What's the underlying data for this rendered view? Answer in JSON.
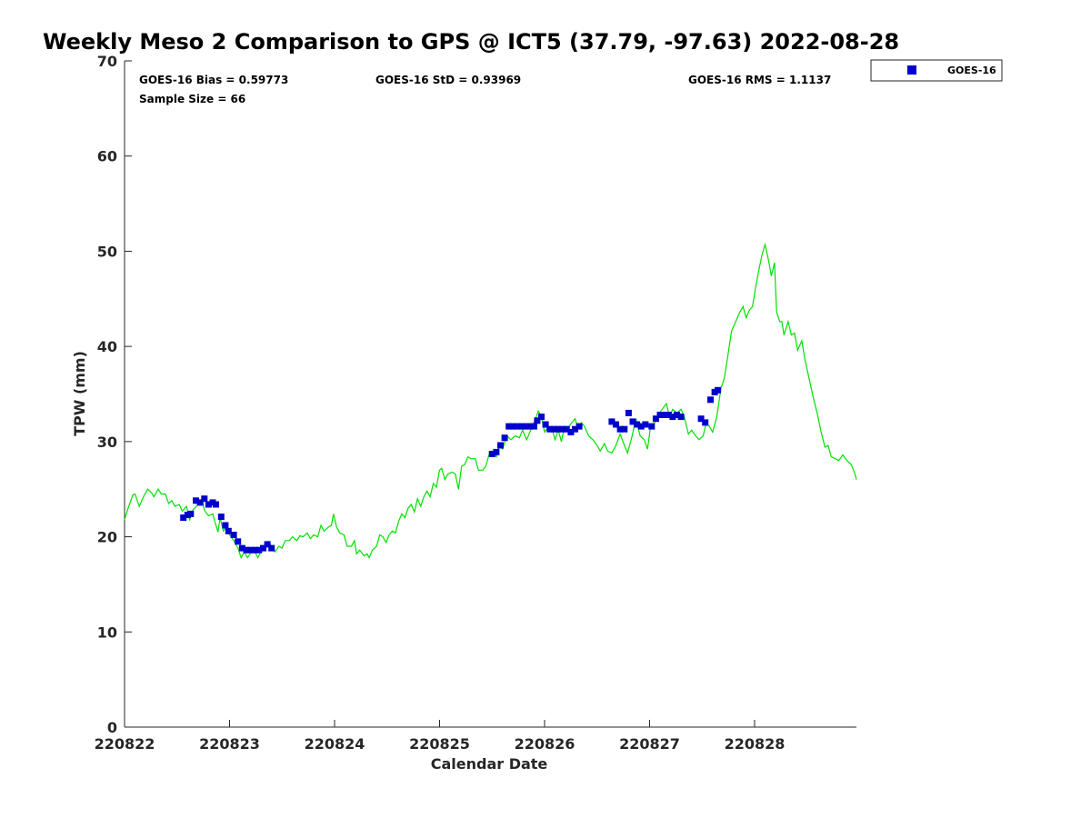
{
  "chart_data": {
    "type": "scatter",
    "title": "Weekly Meso 2 Comparison to GPS @ ICT5 (37.79, -97.63) 2022-08-28",
    "xlabel": "Calendar Date",
    "ylabel": "TPW (mm)",
    "xlim": [
      0,
      6.97
    ],
    "ylim": [
      0,
      70
    ],
    "yticks": [
      0,
      10,
      20,
      30,
      40,
      50,
      60,
      70
    ],
    "xticks": [
      0,
      1,
      2,
      3,
      4,
      5,
      6
    ],
    "xtick_labels": [
      "220822",
      "220823",
      "220824",
      "220825",
      "220826",
      "220827",
      "220828"
    ],
    "legend": {
      "position": "top-right-outside",
      "entries": [
        "GOES-16"
      ]
    },
    "stats": {
      "bias": "GOES-16 Bias = 0.59773",
      "std": "GOES-16 StD = 0.93969",
      "rms": "GOES-16 RMS = 1.1137",
      "sample": "Sample Size = 66"
    },
    "colors": {
      "goes": "#0000cc",
      "gps": "#00e000",
      "axis": "#262626"
    },
    "series": [
      {
        "kind": "markers",
        "name": "GOES-16",
        "points": [
          [
            0.56,
            22.0
          ],
          [
            0.6,
            22.3
          ],
          [
            0.63,
            22.4
          ],
          [
            0.68,
            23.8
          ],
          [
            0.72,
            23.6
          ],
          [
            0.76,
            24.0
          ],
          [
            0.8,
            23.4
          ],
          [
            0.84,
            23.6
          ],
          [
            0.87,
            23.4
          ],
          [
            0.92,
            22.1
          ],
          [
            0.96,
            21.2
          ],
          [
            0.99,
            20.6
          ],
          [
            1.04,
            20.2
          ],
          [
            1.08,
            19.5
          ],
          [
            1.12,
            18.8
          ],
          [
            1.16,
            18.6
          ],
          [
            1.2,
            18.6
          ],
          [
            1.24,
            18.6
          ],
          [
            1.28,
            18.6
          ],
          [
            1.32,
            18.8
          ],
          [
            1.36,
            19.2
          ],
          [
            1.4,
            18.8
          ],
          [
            3.5,
            28.7
          ],
          [
            3.54,
            28.9
          ],
          [
            3.58,
            29.6
          ],
          [
            3.62,
            30.4
          ],
          [
            3.66,
            31.6
          ],
          [
            3.7,
            31.6
          ],
          [
            3.74,
            31.6
          ],
          [
            3.78,
            31.6
          ],
          [
            3.82,
            31.6
          ],
          [
            3.86,
            31.6
          ],
          [
            3.9,
            31.6
          ],
          [
            3.93,
            32.2
          ],
          [
            3.97,
            32.6
          ],
          [
            4.01,
            31.8
          ],
          [
            4.05,
            31.3
          ],
          [
            4.09,
            31.3
          ],
          [
            4.13,
            31.3
          ],
          [
            4.17,
            31.3
          ],
          [
            4.21,
            31.3
          ],
          [
            4.25,
            31.0
          ],
          [
            4.29,
            31.3
          ],
          [
            4.33,
            31.6
          ],
          [
            4.64,
            32.1
          ],
          [
            4.68,
            31.8
          ],
          [
            4.72,
            31.3
          ],
          [
            4.76,
            31.3
          ],
          [
            4.8,
            33.0
          ],
          [
            4.84,
            32.1
          ],
          [
            4.88,
            31.8
          ],
          [
            4.92,
            31.6
          ],
          [
            4.96,
            31.8
          ],
          [
            5.02,
            31.6
          ],
          [
            5.06,
            32.4
          ],
          [
            5.1,
            32.8
          ],
          [
            5.14,
            32.8
          ],
          [
            5.18,
            32.8
          ],
          [
            5.22,
            32.6
          ],
          [
            5.26,
            32.8
          ],
          [
            5.3,
            32.6
          ],
          [
            5.49,
            32.4
          ],
          [
            5.53,
            32.0
          ],
          [
            5.58,
            34.4
          ],
          [
            5.62,
            35.2
          ],
          [
            5.65,
            35.4
          ]
        ]
      },
      {
        "kind": "line",
        "name": "GPS",
        "points": [
          [
            0.0,
            21.8
          ],
          [
            0.04,
            23.2
          ],
          [
            0.08,
            24.4
          ],
          [
            0.1,
            24.5
          ],
          [
            0.14,
            23.2
          ],
          [
            0.18,
            24.2
          ],
          [
            0.22,
            25.0
          ],
          [
            0.26,
            24.6
          ],
          [
            0.28,
            24.2
          ],
          [
            0.32,
            25.0
          ],
          [
            0.35,
            24.5
          ],
          [
            0.39,
            24.5
          ],
          [
            0.42,
            23.5
          ],
          [
            0.45,
            23.8
          ],
          [
            0.48,
            23.2
          ],
          [
            0.52,
            23.4
          ],
          [
            0.55,
            22.7
          ],
          [
            0.59,
            23.2
          ],
          [
            0.62,
            21.8
          ],
          [
            0.65,
            22.8
          ],
          [
            0.7,
            23.4
          ],
          [
            0.74,
            23.8
          ],
          [
            0.76,
            22.8
          ],
          [
            0.8,
            22.2
          ],
          [
            0.84,
            22.4
          ],
          [
            0.86,
            21.6
          ],
          [
            0.89,
            20.5
          ],
          [
            0.91,
            22.0
          ],
          [
            0.94,
            20.6
          ],
          [
            0.97,
            21.0
          ],
          [
            1.0,
            20.2
          ],
          [
            1.04,
            19.6
          ],
          [
            1.08,
            18.8
          ],
          [
            1.11,
            17.8
          ],
          [
            1.14,
            18.4
          ],
          [
            1.17,
            17.8
          ],
          [
            1.21,
            18.4
          ],
          [
            1.24,
            18.4
          ],
          [
            1.27,
            17.8
          ],
          [
            1.3,
            18.5
          ],
          [
            1.33,
            18.8
          ],
          [
            1.37,
            19.5
          ],
          [
            1.4,
            19.0
          ],
          [
            1.43,
            18.4
          ],
          [
            1.47,
            19.0
          ],
          [
            1.5,
            18.8
          ],
          [
            1.53,
            19.6
          ],
          [
            1.57,
            19.6
          ],
          [
            1.6,
            20.0
          ],
          [
            1.64,
            19.6
          ],
          [
            1.67,
            20.1
          ],
          [
            1.7,
            20.0
          ],
          [
            1.74,
            20.4
          ],
          [
            1.77,
            19.8
          ],
          [
            1.8,
            20.2
          ],
          [
            1.84,
            20.0
          ],
          [
            1.87,
            21.2
          ],
          [
            1.9,
            20.6
          ],
          [
            1.94,
            21.0
          ],
          [
            1.97,
            21.2
          ],
          [
            1.99,
            22.4
          ],
          [
            2.02,
            21.0
          ],
          [
            2.05,
            20.4
          ],
          [
            2.09,
            20.2
          ],
          [
            2.12,
            19.0
          ],
          [
            2.16,
            19.0
          ],
          [
            2.19,
            19.6
          ],
          [
            2.21,
            18.2
          ],
          [
            2.24,
            18.6
          ],
          [
            2.28,
            18.0
          ],
          [
            2.31,
            18.2
          ],
          [
            2.33,
            17.8
          ],
          [
            2.36,
            18.6
          ],
          [
            2.4,
            19.0
          ],
          [
            2.43,
            20.2
          ],
          [
            2.46,
            20.0
          ],
          [
            2.49,
            19.4
          ],
          [
            2.52,
            20.2
          ],
          [
            2.55,
            20.6
          ],
          [
            2.58,
            20.4
          ],
          [
            2.61,
            21.6
          ],
          [
            2.64,
            22.4
          ],
          [
            2.67,
            22.0
          ],
          [
            2.7,
            23.0
          ],
          [
            2.73,
            23.4
          ],
          [
            2.76,
            22.6
          ],
          [
            2.79,
            24.0
          ],
          [
            2.82,
            23.2
          ],
          [
            2.85,
            24.2
          ],
          [
            2.88,
            24.8
          ],
          [
            2.91,
            24.2
          ],
          [
            2.94,
            25.6
          ],
          [
            2.97,
            25.2
          ],
          [
            3.0,
            27.0
          ],
          [
            3.02,
            27.2
          ],
          [
            3.05,
            26.0
          ],
          [
            3.08,
            26.6
          ],
          [
            3.12,
            26.8
          ],
          [
            3.15,
            26.6
          ],
          [
            3.18,
            25.0
          ],
          [
            3.21,
            27.4
          ],
          [
            3.24,
            27.6
          ],
          [
            3.27,
            28.4
          ],
          [
            3.3,
            28.2
          ],
          [
            3.34,
            28.2
          ],
          [
            3.37,
            27.0
          ],
          [
            3.41,
            27.0
          ],
          [
            3.44,
            27.4
          ],
          [
            3.47,
            28.6
          ],
          [
            3.5,
            29.0
          ],
          [
            3.54,
            28.4
          ],
          [
            3.57,
            29.6
          ],
          [
            3.6,
            29.2
          ],
          [
            3.64,
            30.6
          ],
          [
            3.68,
            30.2
          ],
          [
            3.72,
            30.6
          ],
          [
            3.76,
            30.4
          ],
          [
            3.79,
            31.2
          ],
          [
            3.83,
            30.2
          ],
          [
            3.86,
            31.0
          ],
          [
            3.9,
            32.0
          ],
          [
            3.94,
            33.2
          ],
          [
            3.97,
            32.6
          ],
          [
            4.0,
            31.0
          ],
          [
            4.04,
            31.6
          ],
          [
            4.08,
            31.0
          ],
          [
            4.1,
            30.2
          ],
          [
            4.13,
            31.2
          ],
          [
            4.16,
            30.0
          ],
          [
            4.19,
            31.6
          ],
          [
            4.22,
            31.4
          ],
          [
            4.26,
            32.0
          ],
          [
            4.29,
            32.4
          ],
          [
            4.32,
            31.4
          ],
          [
            4.35,
            32.0
          ],
          [
            4.38,
            31.6
          ],
          [
            4.42,
            30.6
          ],
          [
            4.46,
            30.2
          ],
          [
            4.5,
            29.6
          ],
          [
            4.53,
            29.0
          ],
          [
            4.57,
            29.8
          ],
          [
            4.6,
            29.0
          ],
          [
            4.64,
            28.8
          ],
          [
            4.68,
            29.6
          ],
          [
            4.72,
            30.8
          ],
          [
            4.76,
            29.6
          ],
          [
            4.79,
            28.8
          ],
          [
            4.83,
            30.4
          ],
          [
            4.87,
            32.4
          ],
          [
            4.91,
            30.6
          ],
          [
            4.95,
            30.2
          ],
          [
            4.98,
            29.2
          ],
          [
            5.01,
            31.6
          ],
          [
            5.05,
            32.0
          ],
          [
            5.08,
            32.8
          ],
          [
            5.12,
            33.4
          ],
          [
            5.16,
            34.0
          ],
          [
            5.19,
            32.6
          ],
          [
            5.22,
            33.4
          ],
          [
            5.26,
            33.0
          ],
          [
            5.3,
            33.4
          ],
          [
            5.33,
            32.6
          ],
          [
            5.37,
            30.8
          ],
          [
            5.4,
            31.2
          ],
          [
            5.44,
            30.6
          ],
          [
            5.47,
            30.2
          ],
          [
            5.51,
            30.6
          ],
          [
            5.54,
            32.0
          ],
          [
            5.57,
            31.6
          ],
          [
            5.6,
            31.0
          ],
          [
            5.64,
            32.6
          ],
          [
            5.68,
            35.6
          ],
          [
            5.71,
            36.6
          ],
          [
            5.74,
            38.6
          ],
          [
            5.78,
            41.6
          ],
          [
            5.82,
            42.6
          ],
          [
            5.86,
            43.6
          ],
          [
            5.89,
            44.2
          ],
          [
            5.92,
            43.0
          ],
          [
            5.95,
            43.8
          ],
          [
            5.98,
            44.2
          ],
          [
            6.01,
            46.2
          ],
          [
            6.04,
            48.0
          ],
          [
            6.07,
            49.6
          ],
          [
            6.1,
            50.7
          ],
          [
            6.13,
            49.2
          ],
          [
            6.16,
            47.4
          ],
          [
            6.19,
            48.8
          ],
          [
            6.21,
            43.6
          ],
          [
            6.24,
            42.6
          ],
          [
            6.26,
            42.6
          ],
          [
            6.28,
            41.2
          ],
          [
            6.32,
            42.6
          ],
          [
            6.35,
            41.2
          ],
          [
            6.38,
            41.4
          ],
          [
            6.41,
            39.6
          ],
          [
            6.45,
            40.6
          ],
          [
            6.48,
            38.6
          ],
          [
            6.52,
            36.6
          ],
          [
            6.56,
            34.6
          ],
          [
            6.6,
            32.8
          ],
          [
            6.63,
            31.2
          ],
          [
            6.67,
            29.4
          ],
          [
            6.7,
            29.6
          ],
          [
            6.73,
            28.4
          ],
          [
            6.77,
            28.2
          ],
          [
            6.8,
            28.0
          ],
          [
            6.84,
            28.6
          ],
          [
            6.88,
            28.0
          ],
          [
            6.92,
            27.6
          ],
          [
            6.95,
            26.8
          ],
          [
            6.97,
            26.0
          ]
        ]
      }
    ]
  }
}
